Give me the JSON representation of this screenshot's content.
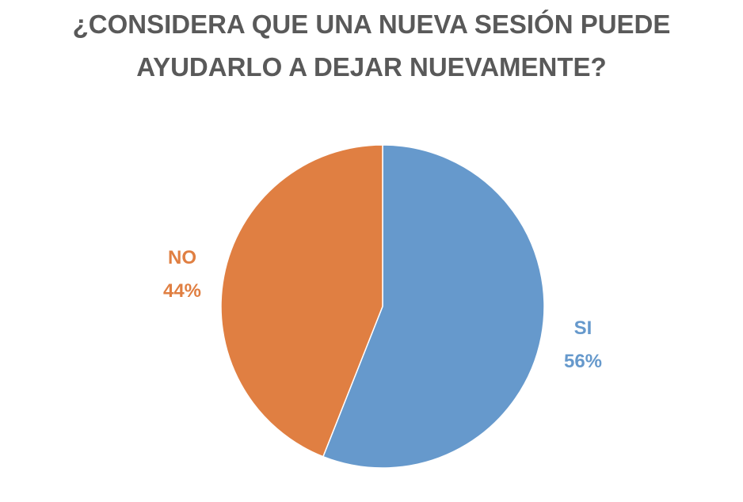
{
  "title": {
    "line1": "¿CONSIDERA QUE UNA NUEVA SESIÓN PUEDE",
    "line2": "AYUDARLO A DEJAR NUEVAMENTE?"
  },
  "chart_data": {
    "type": "pie",
    "title": "¿CONSIDERA QUE UNA NUEVA SESIÓN PUEDE AYUDARLO A DEJAR NUEVAMENTE?",
    "slices": [
      {
        "name": "SI",
        "value": 56,
        "label": "56%",
        "color": "#6699CC"
      },
      {
        "name": "NO",
        "value": 44,
        "label": "44%",
        "color": "#E07F42"
      }
    ],
    "start_angle_deg": 0,
    "direction": "clockwise",
    "legend": "none",
    "data_labels": "outside"
  }
}
